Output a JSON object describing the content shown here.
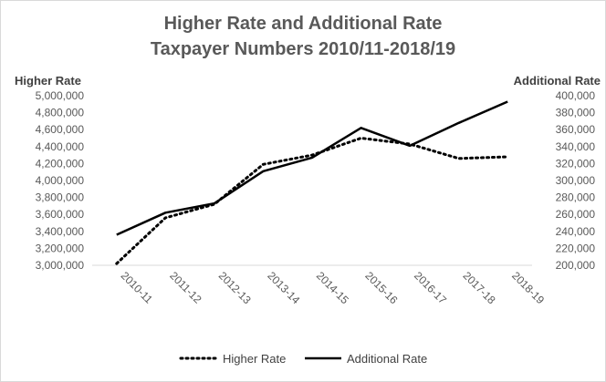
{
  "chart_data": {
    "type": "line",
    "title_lines": [
      "Higher Rate and Additional Rate",
      "Taxpayer Numbers 2010/11-2018/19"
    ],
    "ylabel_left": "Higher Rate",
    "ylabel_right": "Additional Rate",
    "categories": [
      "2010-11",
      "2011-12",
      "2012-13",
      "2013-14",
      "2014-15",
      "2015-16",
      "2016-17",
      "2017-18",
      "2018-19"
    ],
    "y_left": {
      "min": 3000000,
      "max": 5000000,
      "step": 200000,
      "tick_labels": [
        "3,000,000",
        "3,200,000",
        "3,400,000",
        "3,600,000",
        "3,800,000",
        "4,000,000",
        "4,200,000",
        "4,400,000",
        "4,600,000",
        "4,800,000",
        "5,000,000"
      ]
    },
    "y_right": {
      "min": 200000,
      "max": 400000,
      "step": 20000,
      "tick_labels": [
        "200,000",
        "220,000",
        "240,000",
        "260,000",
        "280,000",
        "300,000",
        "320,000",
        "340,000",
        "360,000",
        "380,000",
        "400,000"
      ]
    },
    "series": [
      {
        "name": "Higher Rate",
        "axis": "left",
        "style": "dotted",
        "color": "#000000",
        "values": [
          3020000,
          3560000,
          3720000,
          4190000,
          4300000,
          4500000,
          4430000,
          4260000,
          4280000
        ]
      },
      {
        "name": "Additional Rate",
        "axis": "right",
        "style": "solid",
        "color": "#000000",
        "values": [
          236000,
          262000,
          273000,
          311000,
          327000,
          362000,
          341000,
          368000,
          393000
        ]
      }
    ],
    "grid": false,
    "legend_position": "bottom"
  }
}
